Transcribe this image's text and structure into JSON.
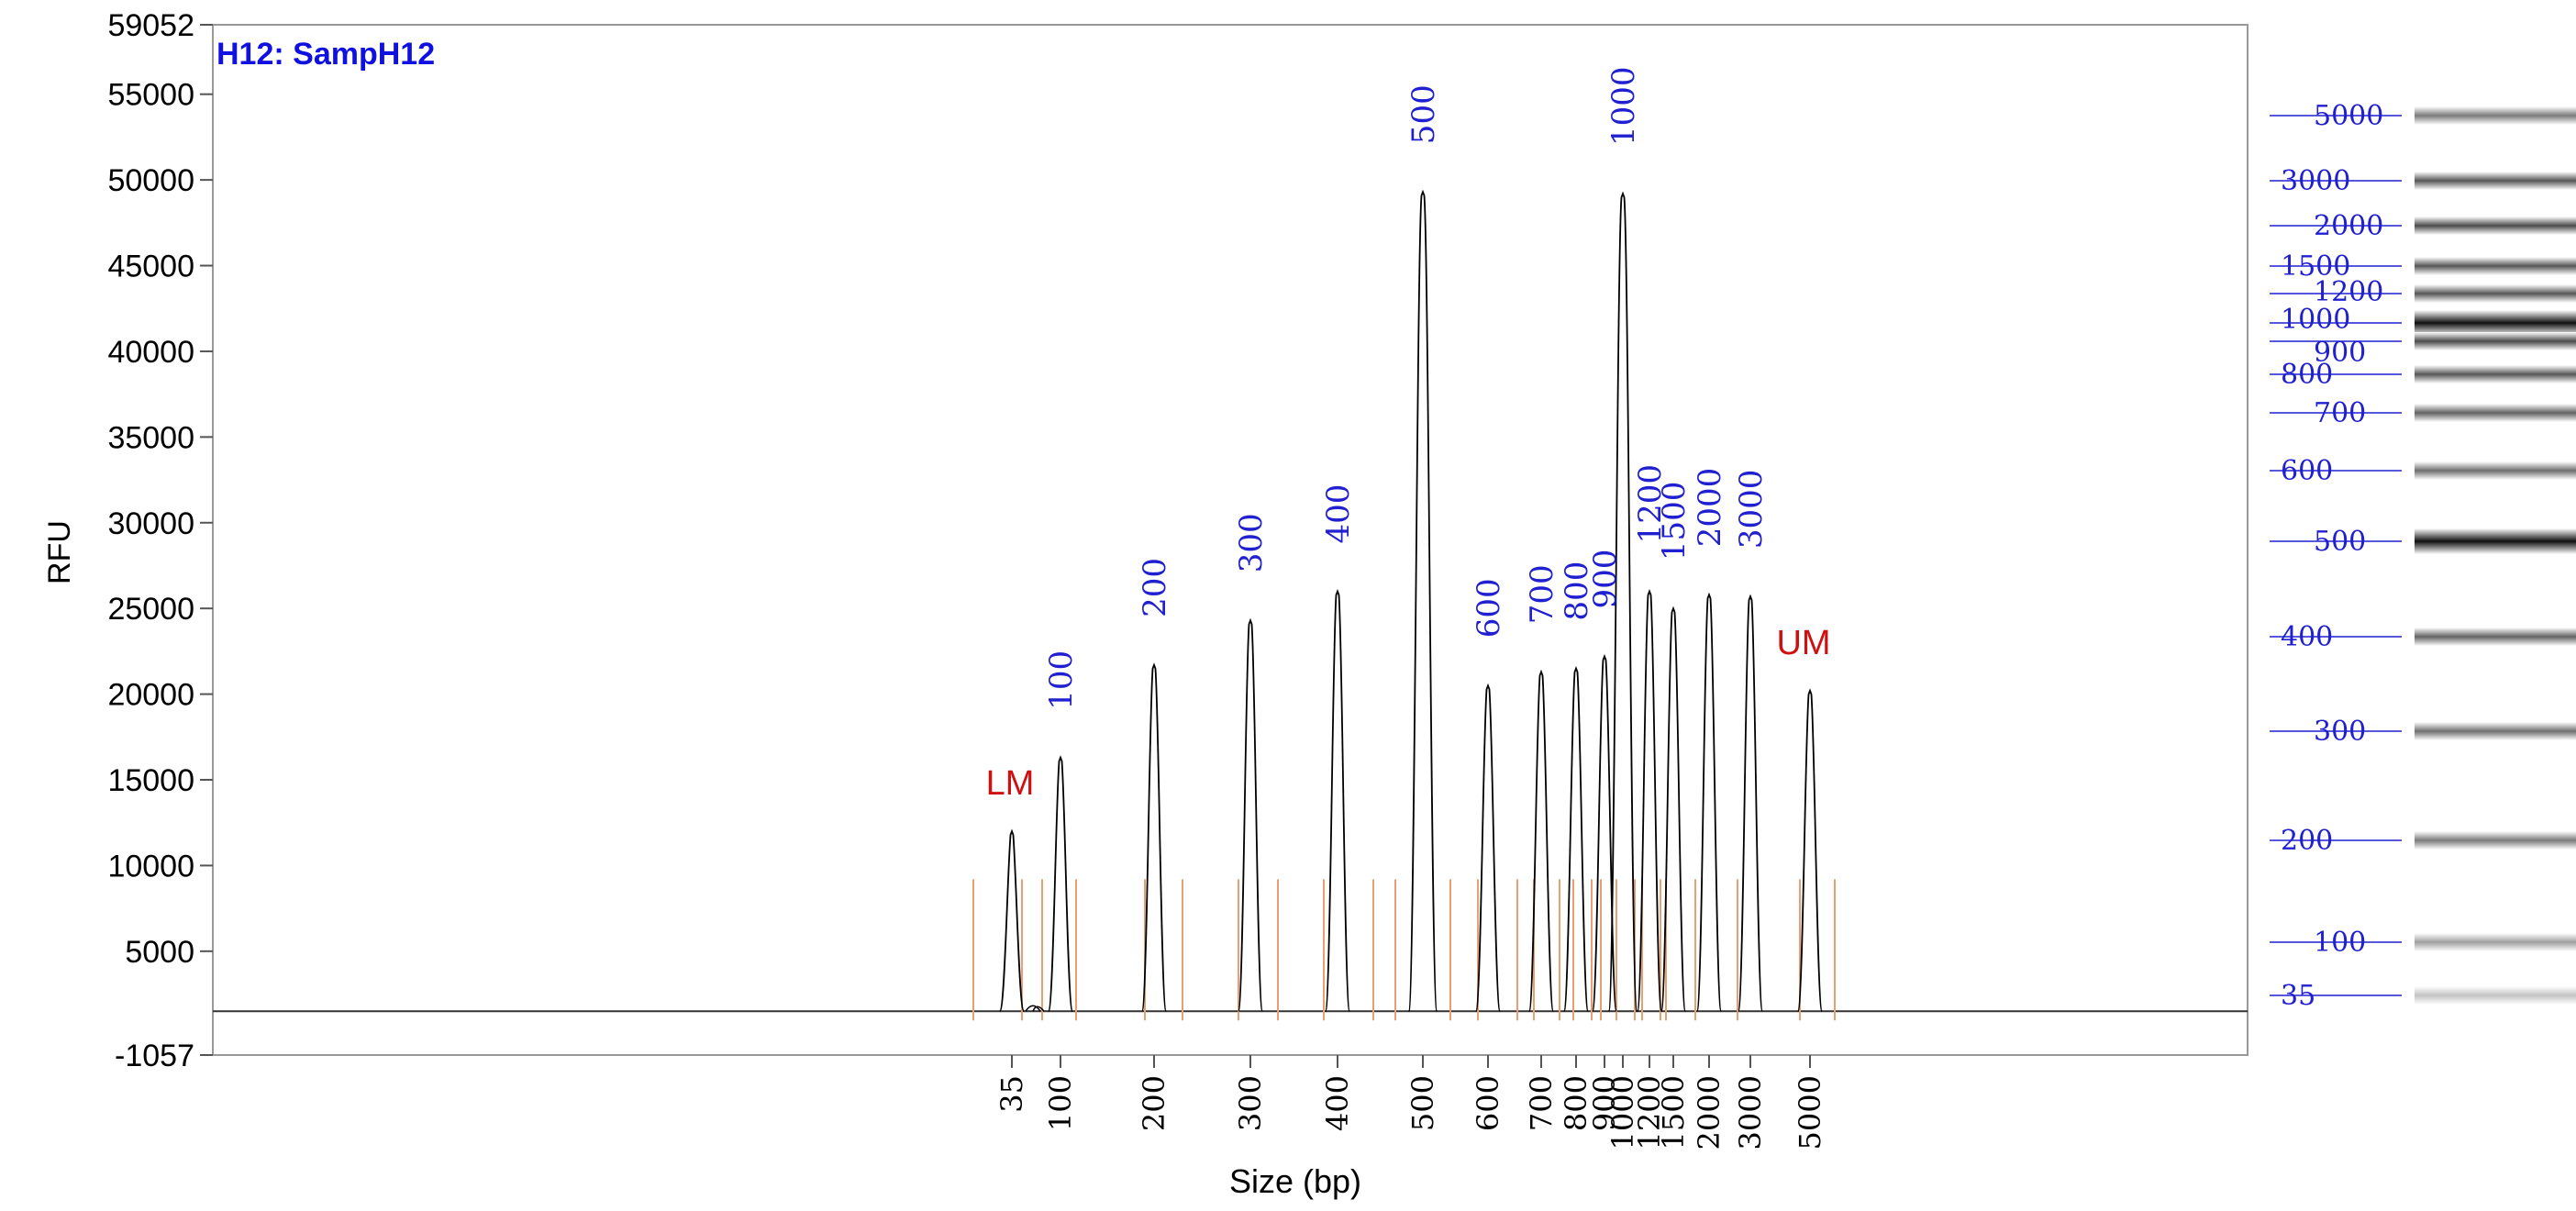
{
  "sample_label": "H12: SampH12",
  "chart_data": {
    "type": "line",
    "title": "H12: SampH12",
    "xlabel": "Size (bp)",
    "ylabel": "RFU",
    "ylim": [
      -1057,
      59052
    ],
    "y_ticks": [
      -1057,
      5000,
      10000,
      15000,
      20000,
      25000,
      30000,
      35000,
      40000,
      45000,
      50000,
      55000,
      59052
    ],
    "y_tick_labels": [
      "-1057",
      "5000",
      "10000",
      "15000",
      "20000",
      "25000",
      "30000",
      "35000",
      "40000",
      "45000",
      "50000",
      "55000",
      "59052"
    ],
    "baseline": 1500,
    "x_tick_labels": [
      "35",
      "100",
      "200",
      "300",
      "400",
      "500",
      "600",
      "700",
      "800",
      "900",
      "1000",
      "1200",
      "1500",
      "2000",
      "3000",
      "5000"
    ],
    "series": [
      {
        "peaks": [
          {
            "size": "35",
            "rfu": 12000,
            "label": "LM"
          },
          {
            "size": "100",
            "rfu": 16300,
            "label": "100"
          },
          {
            "size": "200",
            "rfu": 21700,
            "label": "200"
          },
          {
            "size": "300",
            "rfu": 24300,
            "label": "300"
          },
          {
            "size": "400",
            "rfu": 26000,
            "label": "400"
          },
          {
            "size": "500",
            "rfu": 49300,
            "label": "500"
          },
          {
            "size": "600",
            "rfu": 20500,
            "label": "600"
          },
          {
            "size": "700",
            "rfu": 21300,
            "label": "700"
          },
          {
            "size": "800",
            "rfu": 21500,
            "label": "800"
          },
          {
            "size": "900",
            "rfu": 22200,
            "label": "900"
          },
          {
            "size": "1000",
            "rfu": 49200,
            "label": "1000"
          },
          {
            "size": "1200",
            "rfu": 26000,
            "label": "1200"
          },
          {
            "size": "1500",
            "rfu": 25000,
            "label": "1500"
          },
          {
            "size": "2000",
            "rfu": 25800,
            "label": "2000"
          },
          {
            "size": "3000",
            "rfu": 25700,
            "label": "3000"
          },
          {
            "size": "5000",
            "rfu": 20200,
            "label": "UM"
          }
        ]
      }
    ],
    "marker_labels": [
      "LM",
      "UM"
    ],
    "gel_ladder": {
      "bands": [
        {
          "label": "5000",
          "intensity": 0.55
        },
        {
          "label": "3000",
          "intensity": 0.7
        },
        {
          "label": "2000",
          "intensity": 0.75
        },
        {
          "label": "1500",
          "intensity": 0.7
        },
        {
          "label": "1200",
          "intensity": 0.7
        },
        {
          "label": "1000",
          "intensity": 1.0
        },
        {
          "label": "900",
          "intensity": 0.75
        },
        {
          "label": "800",
          "intensity": 0.7
        },
        {
          "label": "700",
          "intensity": 0.65
        },
        {
          "label": "600",
          "intensity": 0.6
        },
        {
          "label": "500",
          "intensity": 1.0
        },
        {
          "label": "400",
          "intensity": 0.65
        },
        {
          "label": "300",
          "intensity": 0.6
        },
        {
          "label": "200",
          "intensity": 0.55
        },
        {
          "label": "100",
          "intensity": 0.4
        },
        {
          "label": "35",
          "intensity": 0.25
        }
      ]
    },
    "colors": {
      "trace": "#000000",
      "peak_labels": "#2020d0",
      "markers": "#d01010",
      "integration_marks": "#e8a070",
      "ladder_lines": "#2020d0",
      "title": "#1010e0"
    }
  }
}
